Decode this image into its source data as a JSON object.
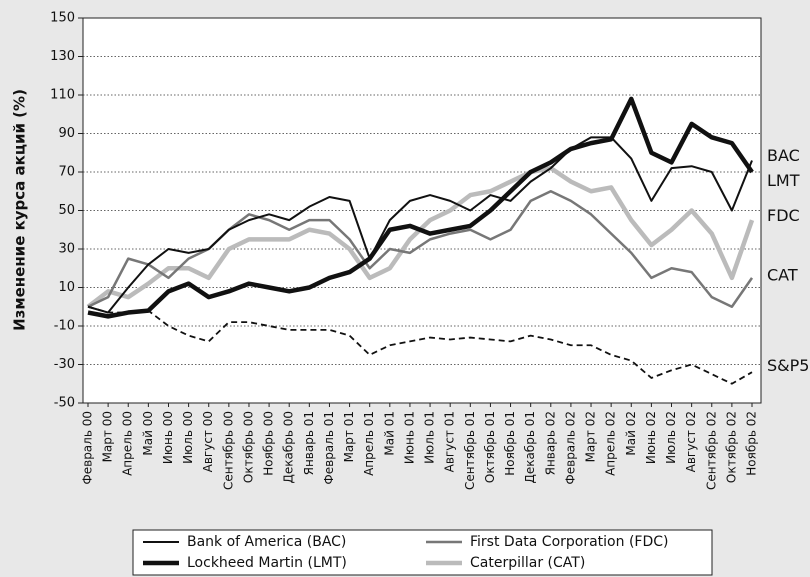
{
  "chart_data": {
    "type": "line",
    "y_label": "Изменение курса акций (%)",
    "categories": [
      "Февраль 00",
      "Март 00",
      "Апрель 00",
      "Май 00",
      "Июнь 00",
      "Июль 00",
      "Август 00",
      "Сентябрь 00",
      "Октябрь 00",
      "Ноябрь 00",
      "Декабрь 00",
      "Январь 01",
      "Февраль 01",
      "Март 01",
      "Апрель 01",
      "Май 01",
      "Июнь 01",
      "Июль 01",
      "Август 01",
      "Сентябрь 01",
      "Октябрь 01",
      "Ноябрь 01",
      "Декабрь 01",
      "Январь 02",
      "Февраль 02",
      "Март 02",
      "Апрель 02",
      "Май 02",
      "Июнь 02",
      "Июль 02",
      "Август 02",
      "Сентябрь 02",
      "Октябрь 02",
      "Ноябрь 02"
    ],
    "series": [
      {
        "name": "Bank of America (BAC)",
        "color": "#111111",
        "width": 2,
        "values": [
          0,
          -3,
          10,
          22,
          30,
          28,
          30,
          40,
          45,
          48,
          45,
          52,
          57,
          55,
          25,
          45,
          55,
          58,
          55,
          50,
          58,
          55,
          65,
          72,
          82,
          88,
          88,
          77,
          55,
          72,
          73,
          70,
          50,
          76
        ]
      },
      {
        "name": "Lockheed Martin (LMT)",
        "color": "#111111",
        "width": 4.5,
        "values": [
          -3,
          -5,
          -3,
          -2,
          8,
          12,
          5,
          8,
          12,
          10,
          8,
          10,
          15,
          18,
          25,
          40,
          42,
          38,
          40,
          42,
          50,
          60,
          70,
          75,
          82,
          85,
          87,
          108,
          80,
          75,
          95,
          88,
          85,
          70
        ]
      },
      {
        "name": "First Data Corporation (FDC)",
        "color": "#777777",
        "width": 2.5,
        "values": [
          0,
          5,
          25,
          22,
          15,
          25,
          30,
          40,
          48,
          45,
          40,
          45,
          45,
          35,
          20,
          30,
          28,
          35,
          38,
          40,
          35,
          40,
          55,
          60,
          55,
          48,
          38,
          28,
          15,
          20,
          18,
          5,
          0,
          15
        ]
      },
      {
        "name": "Caterpillar (CAT)",
        "color": "#bbbbbb",
        "width": 4.5,
        "values": [
          0,
          8,
          5,
          12,
          20,
          20,
          15,
          30,
          35,
          35,
          35,
          40,
          38,
          30,
          15,
          20,
          35,
          45,
          50,
          58,
          60,
          65,
          70,
          72,
          65,
          60,
          62,
          45,
          32,
          40,
          50,
          38,
          15,
          45
        ]
      },
      {
        "color": "#111111",
        "width": 1.8,
        "dashed": true,
        "values": [
          0,
          -3,
          -3,
          -2,
          -10,
          -15,
          -18,
          -8,
          -8,
          -10,
          -12,
          -12,
          -12,
          -15,
          -25,
          -20,
          -18,
          -16,
          -17,
          -16,
          -17,
          -18,
          -15,
          -17,
          -20,
          -20,
          -25,
          -28,
          -37,
          -33,
          -30,
          -35,
          -40,
          -34
        ]
      }
    ],
    "annotations": [
      {
        "text": "BAC",
        "y": 78
      },
      {
        "text": "LMT",
        "y": 65
      },
      {
        "text": "FDC",
        "y": 47
      },
      {
        "text": "CAT",
        "y": 16
      },
      {
        "text": "S&P500",
        "y": -31
      }
    ],
    "ylim": [
      -50,
      150
    ],
    "yticks": [
      -50,
      -30,
      -10,
      10,
      30,
      50,
      70,
      90,
      110,
      130,
      150
    ],
    "grid": true
  }
}
